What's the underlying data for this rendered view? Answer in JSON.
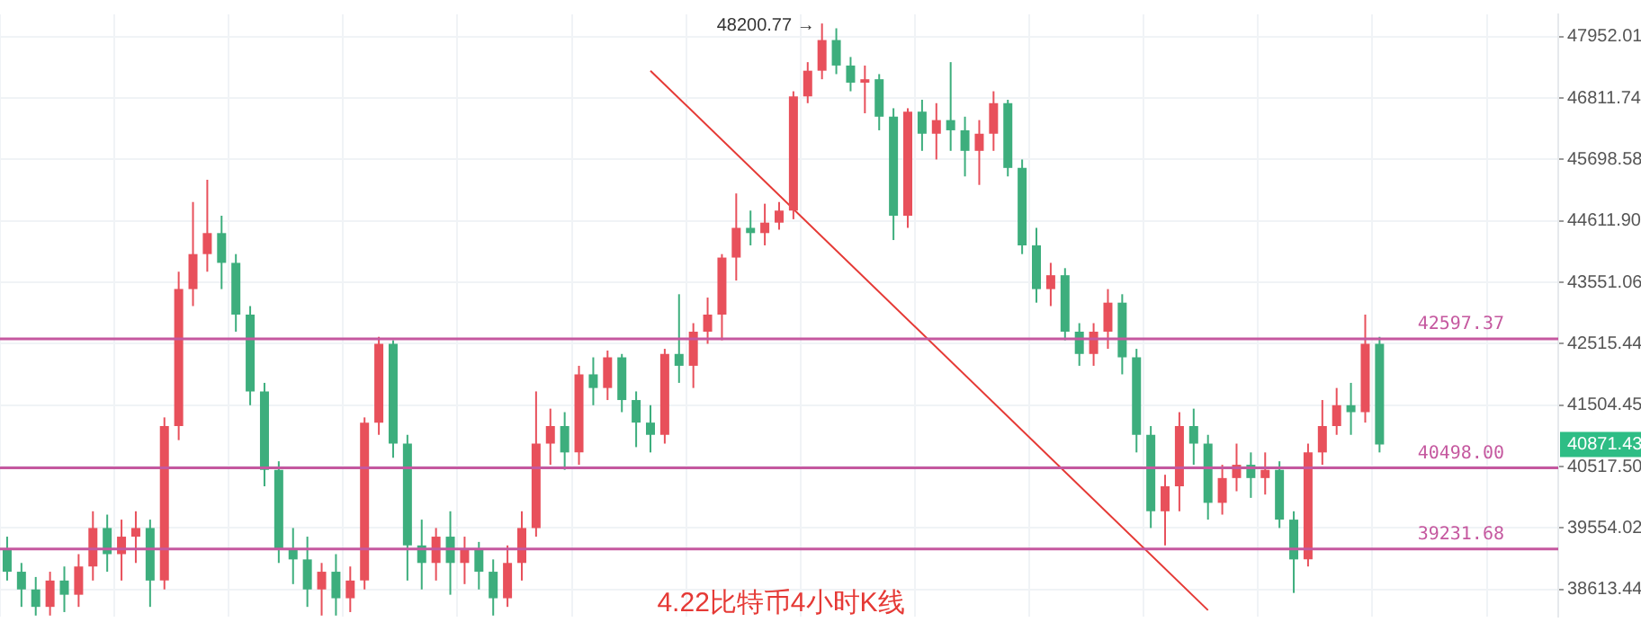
{
  "chart_data": {
    "type": "candlestick",
    "title": "4.22比特币4小时K线",
    "categories": [
      null,
      null,
      null,
      null,
      null,
      null,
      null,
      null,
      null,
      null,
      null,
      null,
      null,
      null,
      null,
      null,
      null,
      null,
      null,
      null,
      null,
      null,
      null,
      null,
      null,
      null,
      null,
      null,
      null,
      null,
      null,
      null,
      null,
      null,
      null,
      null,
      null,
      null,
      null,
      null,
      null,
      null,
      null,
      null,
      null,
      null,
      null,
      null,
      null,
      null,
      null,
      null,
      null,
      null,
      null,
      null,
      null,
      null,
      null,
      null,
      null,
      null,
      null,
      null,
      null,
      null,
      null,
      null,
      null,
      null,
      null,
      null,
      null,
      null,
      null,
      null,
      null,
      null,
      null,
      null,
      null,
      null,
      null,
      null,
      null,
      null,
      null,
      null,
      null,
      null,
      null,
      null,
      null,
      null,
      null,
      null,
      null,
      null,
      null,
      null,
      null,
      null,
      null,
      null,
      null,
      null,
      null,
      null,
      null
    ],
    "ohlc": [
      [
        39231,
        39420,
        38748,
        38882
      ],
      [
        38882,
        39016,
        38350,
        38613
      ],
      [
        38613,
        38802,
        38220,
        38350
      ],
      [
        38350,
        38882,
        38220,
        38748
      ],
      [
        38748,
        38962,
        38272,
        38533
      ],
      [
        38533,
        39151,
        38350,
        38962
      ],
      [
        38962,
        39814,
        38748,
        39554
      ],
      [
        39554,
        39762,
        38882,
        39151
      ],
      [
        39151,
        39684,
        38748,
        39420
      ],
      [
        39420,
        39814,
        39016,
        39554
      ],
      [
        39554,
        39684,
        38350,
        38748
      ],
      [
        38748,
        41306,
        38613,
        41166
      ],
      [
        41166,
        43733,
        40940,
        43436
      ],
      [
        43436,
        44944,
        43148,
        44036
      ],
      [
        44036,
        45337,
        43733,
        44400
      ],
      [
        44400,
        44703,
        43436,
        43885
      ],
      [
        43885,
        44036,
        42717,
        43004
      ],
      [
        43004,
        43148,
        41504,
        41729
      ],
      [
        41729,
        41869,
        40206,
        40466
      ],
      [
        40466,
        40602,
        39016,
        39231
      ],
      [
        39231,
        39554,
        38694,
        39070
      ],
      [
        39070,
        39420,
        38350,
        38613
      ],
      [
        38613,
        39016,
        38220,
        38882
      ],
      [
        38882,
        39151,
        38220,
        38480
      ],
      [
        38480,
        38962,
        38272,
        38748
      ],
      [
        38748,
        41306,
        38613,
        41222
      ],
      [
        41222,
        42631,
        41025,
        42515
      ],
      [
        42515,
        42573,
        40658,
        40884
      ],
      [
        40884,
        41025,
        38748,
        39285
      ],
      [
        39285,
        39684,
        38613,
        39016
      ],
      [
        39016,
        39554,
        38748,
        39420
      ],
      [
        39420,
        39814,
        38533,
        39016
      ],
      [
        39016,
        39420,
        38694,
        39231
      ],
      [
        39231,
        39339,
        38613,
        38882
      ],
      [
        38882,
        39070,
        38220,
        38480
      ],
      [
        38480,
        39285,
        38350,
        39016
      ],
      [
        39016,
        39814,
        38748,
        39554
      ],
      [
        39554,
        41729,
        39420,
        40884
      ],
      [
        40884,
        41448,
        40546,
        41166
      ],
      [
        41166,
        41391,
        40466,
        40743
      ],
      [
        40743,
        42150,
        40546,
        42009
      ],
      [
        42009,
        42290,
        41504,
        41785
      ],
      [
        41785,
        42402,
        41588,
        42290
      ],
      [
        42290,
        42346,
        41391,
        41588
      ],
      [
        41588,
        41729,
        40828,
        41222
      ],
      [
        41222,
        41504,
        40743,
        41025
      ],
      [
        41025,
        42431,
        40884,
        42346
      ],
      [
        42346,
        43349,
        41869,
        42150
      ],
      [
        42150,
        42860,
        41785,
        42717
      ],
      [
        42717,
        43292,
        42515,
        43004
      ],
      [
        43004,
        44036,
        42573,
        43976
      ],
      [
        43976,
        45095,
        43582,
        44491
      ],
      [
        44491,
        44793,
        44187,
        44400
      ],
      [
        44400,
        44914,
        44187,
        44582
      ],
      [
        44582,
        44944,
        44461,
        44793
      ],
      [
        44793,
        46937,
        44642,
        46843
      ],
      [
        46843,
        47476,
        46719,
        47317
      ],
      [
        47317,
        48200.77,
        47159,
        47889
      ],
      [
        47889,
        48110,
        47254,
        47413
      ],
      [
        47413,
        47572,
        46937,
        47096
      ],
      [
        47096,
        47413,
        46534,
        47159
      ],
      [
        47159,
        47254,
        46225,
        46472
      ],
      [
        46472,
        46626,
        44279,
        44702
      ],
      [
        44702,
        46626,
        44491,
        46564
      ],
      [
        46564,
        46781,
        45854,
        46163
      ],
      [
        46163,
        46719,
        45699,
        46410
      ],
      [
        46410,
        47476,
        45854,
        46225
      ],
      [
        46225,
        46472,
        45397,
        45854
      ],
      [
        45854,
        46410,
        45246,
        46163
      ],
      [
        46163,
        46937,
        45854,
        46719
      ],
      [
        46719,
        46781,
        45397,
        45548
      ],
      [
        45548,
        45699,
        44036,
        44187
      ],
      [
        44187,
        44491,
        43206,
        43436
      ],
      [
        43436,
        43885,
        43148,
        43673
      ],
      [
        43673,
        43794,
        42573,
        42717
      ],
      [
        42717,
        42860,
        42150,
        42346
      ],
      [
        42346,
        42860,
        42150,
        42717
      ],
      [
        42717,
        43436,
        42431,
        43206
      ],
      [
        43206,
        43349,
        42009,
        42290
      ],
      [
        42290,
        42431,
        40743,
        41025
      ],
      [
        41025,
        41166,
        39554,
        39814
      ],
      [
        39814,
        40388,
        39285,
        40206
      ],
      [
        40206,
        41391,
        39814,
        41166
      ],
      [
        41166,
        41448,
        40546,
        40884
      ],
      [
        40884,
        41025,
        39684,
        39946
      ],
      [
        39946,
        40546,
        39762,
        40336
      ],
      [
        40336,
        40884,
        40128,
        40546
      ],
      [
        40546,
        40743,
        40024,
        40336
      ],
      [
        40336,
        40743,
        40076,
        40466
      ],
      [
        40466,
        40602,
        39554,
        39684
      ],
      [
        39684,
        39814,
        38560,
        39070
      ],
      [
        39070,
        40884,
        38962,
        40743
      ],
      [
        40743,
        41588,
        40546,
        41166
      ],
      [
        41166,
        41785,
        41025,
        41504
      ],
      [
        41504,
        41869,
        41025,
        41391
      ],
      [
        41391,
        43004,
        41222,
        42515
      ],
      [
        42515,
        42631,
        40743,
        40871.43
      ],
      null,
      null,
      null,
      null,
      null,
      null,
      null,
      null,
      null,
      null,
      null,
      null
    ],
    "colors": [
      "#3dae7d",
      "#3dae7d",
      "#3dae7d",
      "#e8505b",
      "#3dae7d",
      "#e8505b",
      "#e8505b",
      "#3dae7d",
      "#e8505b",
      "#e8505b",
      "#3dae7d",
      "#e8505b",
      "#e8505b",
      "#e8505b",
      "#e8505b",
      "#3dae7d",
      "#3dae7d",
      "#3dae7d",
      "#3dae7d",
      "#3dae7d",
      "#3dae7d",
      "#3dae7d",
      "#e8505b",
      "#3dae7d",
      "#e8505b",
      "#e8505b",
      "#e8505b",
      "#3dae7d",
      "#3dae7d",
      "#3dae7d",
      "#e8505b",
      "#3dae7d",
      "#e8505b",
      "#3dae7d",
      "#3dae7d",
      "#e8505b",
      "#e8505b",
      "#e8505b",
      "#e8505b",
      "#3dae7d",
      "#e8505b",
      "#3dae7d",
      "#e8505b",
      "#3dae7d",
      "#3dae7d",
      "#3dae7d",
      "#e8505b",
      "#3dae7d",
      "#e8505b",
      "#e8505b",
      "#e8505b",
      "#e8505b",
      "#3dae7d",
      "#e8505b",
      "#e8505b",
      "#e8505b",
      "#e8505b",
      "#e8505b",
      "#3dae7d",
      "#3dae7d",
      "#e8505b",
      "#3dae7d",
      "#3dae7d",
      "#e8505b",
      "#3dae7d",
      "#e8505b",
      "#3dae7d",
      "#3dae7d",
      "#e8505b",
      "#e8505b",
      "#3dae7d",
      "#3dae7d",
      "#3dae7d",
      "#e8505b",
      "#3dae7d",
      "#3dae7d",
      "#e8505b",
      "#e8505b",
      "#3dae7d",
      "#3dae7d",
      "#3dae7d",
      "#e8505b",
      "#e8505b",
      "#3dae7d",
      "#3dae7d",
      "#e8505b",
      "#e8505b",
      "#3dae7d",
      "#e8505b",
      "#3dae7d",
      "#3dae7d",
      "#e8505b",
      "#e8505b",
      "#e8505b",
      "#3dae7d",
      "#e8505b",
      "#3dae7d",
      null,
      null,
      null,
      null,
      null,
      null,
      null,
      null,
      null,
      null,
      null,
      null
    ],
    "series": [
      {
        "type": "line",
        "color": "#e53935",
        "values": [
          null,
          null,
          null,
          null,
          null,
          null,
          null,
          null,
          null,
          null,
          null,
          null,
          null,
          null,
          null,
          null,
          null,
          null,
          null,
          null,
          null,
          null,
          null,
          null,
          null,
          null,
          null,
          null,
          null,
          null,
          null,
          null,
          null,
          null,
          null,
          null,
          null,
          null,
          null,
          null,
          null,
          null,
          null,
          null,
          null,
          47317,
          null,
          null,
          null,
          null,
          null,
          null,
          null,
          null,
          null,
          null,
          null,
          null,
          null,
          null,
          null,
          null,
          null,
          null,
          null,
          null,
          null,
          null,
          null,
          null,
          null,
          null,
          null,
          null,
          null,
          null,
          null,
          null,
          null,
          null,
          null,
          null,
          null,
          null,
          38300,
          null,
          null,
          null,
          null,
          null,
          null,
          null,
          null,
          null,
          null,
          null,
          null,
          null,
          null,
          null,
          null,
          null,
          null,
          null,
          null,
          null,
          null,
          null,
          null
        ]
      }
    ],
    "ylim": [
      38204,
      48373
    ],
    "yticks": [
      {
        "value": 38613.44,
        "label": "38613.44"
      },
      {
        "value": 39554.02,
        "label": "39554.02"
      },
      {
        "value": 40517.5,
        "label": "40517.50"
      },
      {
        "value": 41504.45,
        "label": "41504.45"
      },
      {
        "value": 42515.44,
        "label": "42515.44"
      },
      {
        "value": 43551.06,
        "label": "43551.06"
      },
      {
        "value": 44611.9,
        "label": "44611.90"
      },
      {
        "value": 45698.58,
        "label": "45698.58"
      },
      {
        "value": 46811.74,
        "label": "46811.74"
      },
      {
        "value": 47952.01,
        "label": "47952.01"
      }
    ],
    "log": true,
    "grid": true,
    "legend": false,
    "tick_labels": "y",
    "ref_lines": [
      {
        "axis": "y",
        "value": 42597.37,
        "label": "42597.37",
        "color": "#c5589f"
      },
      {
        "axis": "y",
        "value": 40498.0,
        "label": "40498.00",
        "color": "#c5589f"
      },
      {
        "axis": "y",
        "value": 39231.68,
        "label": "39231.68",
        "color": "#c5589f"
      }
    ],
    "annotations": [
      "48200.77 →",
      "40871.43"
    ]
  }
}
